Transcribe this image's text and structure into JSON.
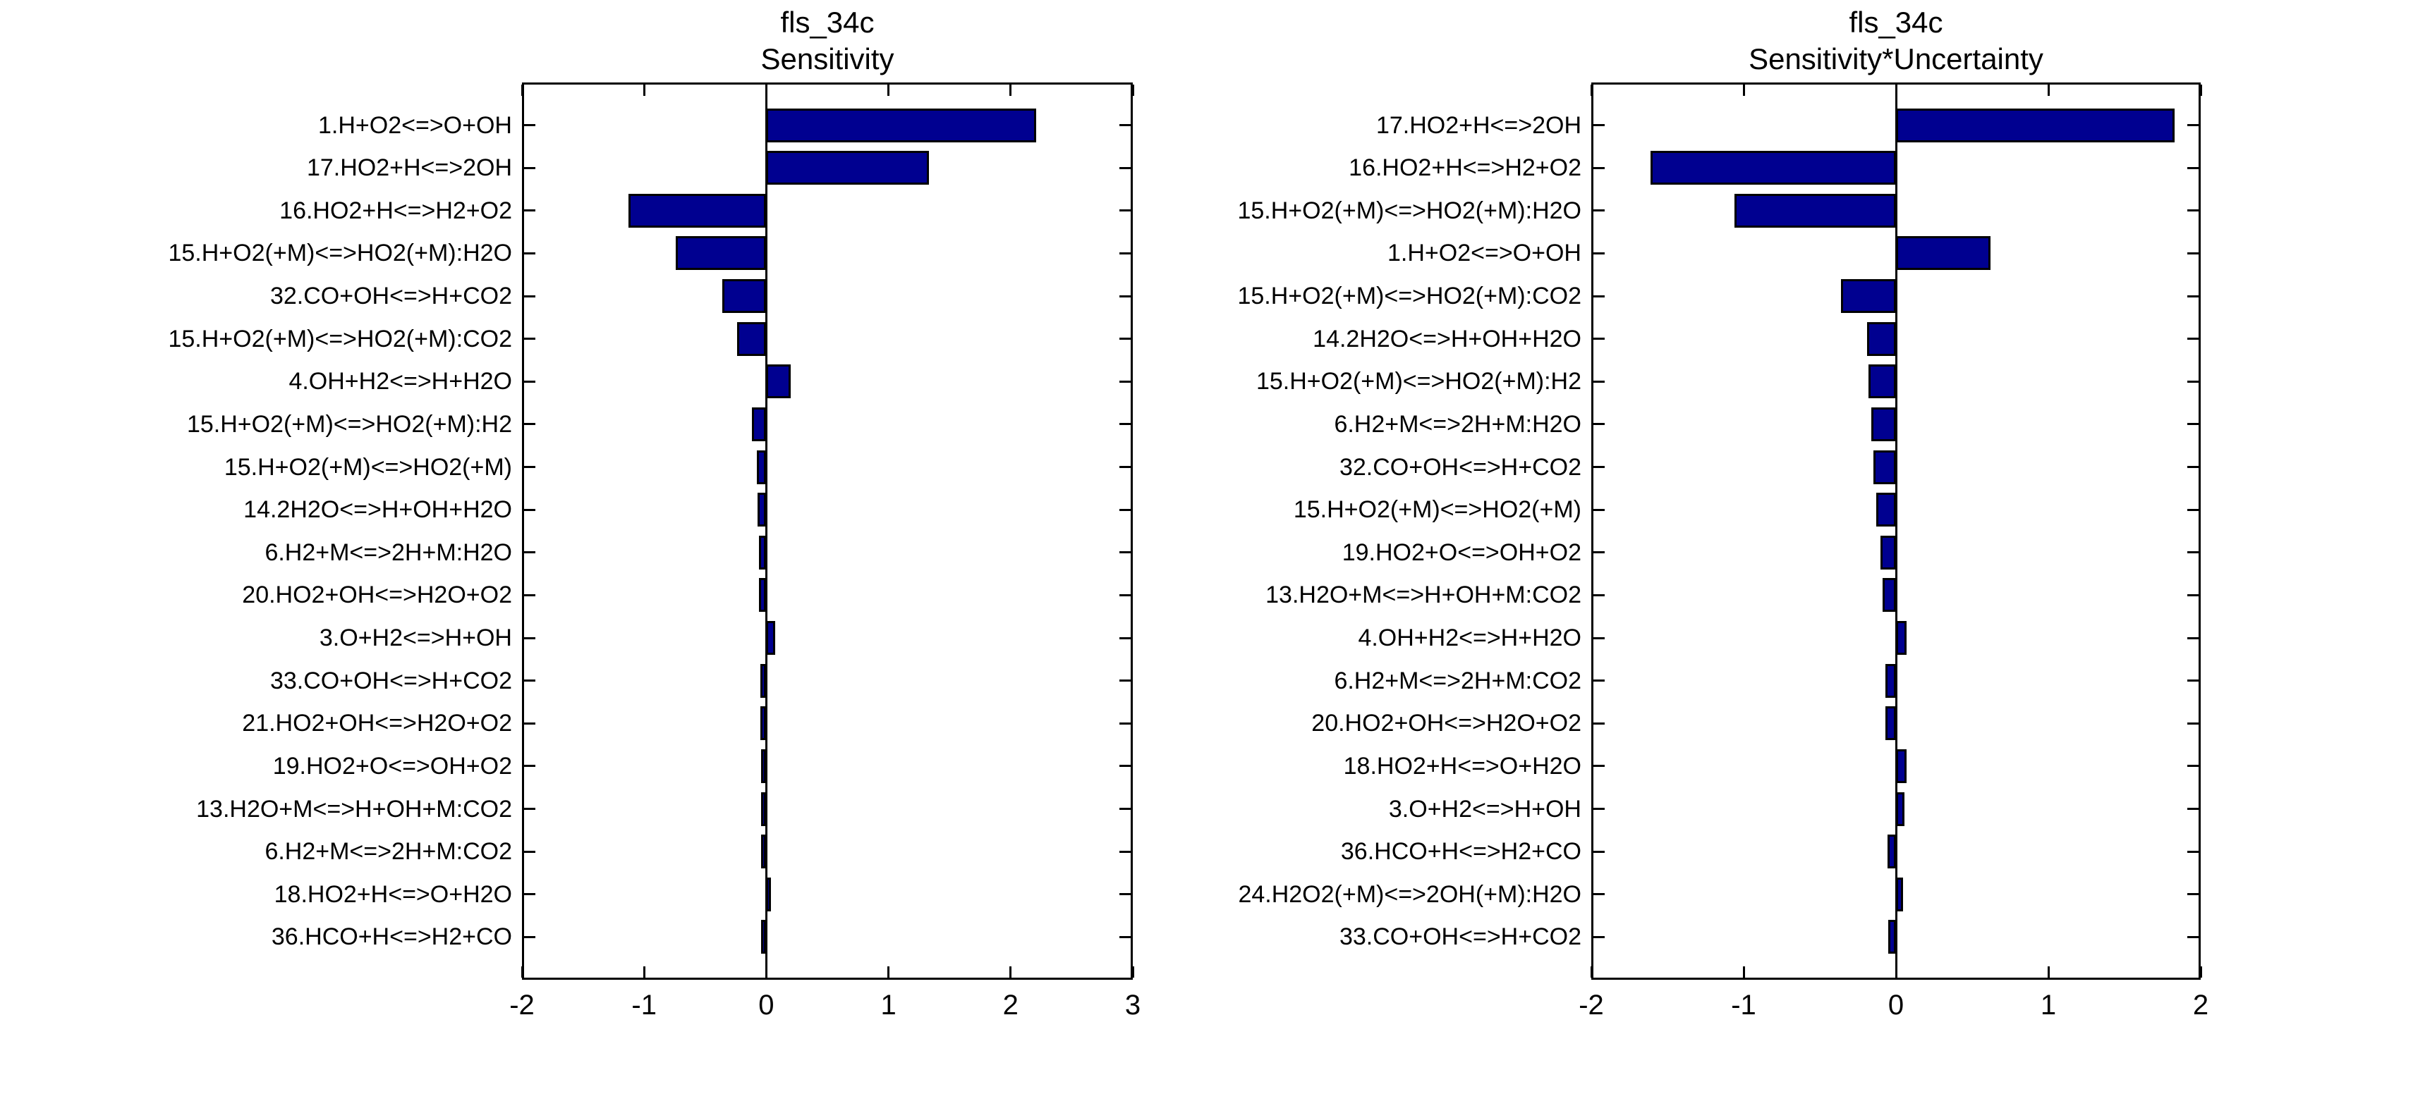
{
  "figure": {
    "background": "#ffffff",
    "axis_color": "#000000",
    "bar_color": "#000090",
    "bar_edge_color": "#000000"
  },
  "chart_data": [
    {
      "type": "bar",
      "orientation": "horizontal",
      "title_line1": "fls_34c",
      "title_line2": "Sensitivity",
      "xlabel": "",
      "ylabel": "",
      "xlim": [
        -2,
        3
      ],
      "xticks": [
        "-2",
        "-1",
        "0",
        "1",
        "2",
        "3"
      ],
      "xtick_values": [
        -2,
        -1,
        0,
        1,
        2,
        3
      ],
      "grid": false,
      "categories": [
        "1.H+O2<=>O+OH",
        "17.HO2+H<=>2OH",
        "16.HO2+H<=>H2+O2",
        "15.H+O2(+M)<=>HO2(+M):H2O",
        "32.CO+OH<=>H+CO2",
        "15.H+O2(+M)<=>HO2(+M):CO2",
        "4.OH+H2<=>H+H2O",
        "15.H+O2(+M)<=>HO2(+M):H2",
        "15.H+O2(+M)<=>HO2(+M)",
        "14.2H2O<=>H+OH+H2O",
        "6.H2+M<=>2H+M:H2O",
        "20.HO2+OH<=>H2O+O2",
        "3.O+H2<=>H+OH",
        "33.CO+OH<=>H+CO2",
        "21.HO2+OH<=>H2O+O2",
        "19.HO2+O<=>OH+O2",
        "13.H2O+M<=>H+OH+M:CO2",
        "6.H2+M<=>2H+M:CO2",
        "18.HO2+H<=>O+H2O",
        "36.HCO+H<=>H2+CO"
      ],
      "values": [
        2.21,
        1.33,
        -1.13,
        -0.74,
        -0.36,
        -0.24,
        0.2,
        -0.12,
        -0.08,
        -0.07,
        -0.06,
        -0.06,
        0.07,
        -0.05,
        -0.05,
        -0.035,
        -0.035,
        -0.03,
        0.03,
        -0.03
      ]
    },
    {
      "type": "bar",
      "orientation": "horizontal",
      "title_line1": "fls_34c",
      "title_line2": "Sensitivity*Uncertainty",
      "xlabel": "",
      "ylabel": "",
      "xlim": [
        -2,
        2
      ],
      "xticks": [
        "-2",
        "-1",
        "0",
        "1",
        "2"
      ],
      "xtick_values": [
        -2,
        -1,
        0,
        1,
        2
      ],
      "grid": false,
      "categories": [
        "17.HO2+H<=>2OH",
        "16.HO2+H<=>H2+O2",
        "15.H+O2(+M)<=>HO2(+M):H2O",
        "1.H+O2<=>O+OH",
        "15.H+O2(+M)<=>HO2(+M):CO2",
        "14.2H2O<=>H+OH+H2O",
        "15.H+O2(+M)<=>HO2(+M):H2",
        "6.H2+M<=>2H+M:H2O",
        "32.CO+OH<=>H+CO2",
        "15.H+O2(+M)<=>HO2(+M)",
        "19.HO2+O<=>OH+O2",
        "13.H2O+M<=>H+OH+M:CO2",
        "4.OH+H2<=>H+H2O",
        "6.H2+M<=>2H+M:CO2",
        "20.HO2+OH<=>H2O+O2",
        "18.HO2+H<=>O+H2O",
        "3.O+H2<=>H+OH",
        "36.HCO+H<=>H2+CO",
        "24.H2O2(+M)<=>2OH(+M):H2O",
        "33.CO+OH<=>H+CO2"
      ],
      "values": [
        1.83,
        -1.61,
        -1.06,
        0.62,
        -0.36,
        -0.19,
        -0.18,
        -0.16,
        -0.15,
        -0.13,
        -0.1,
        -0.09,
        0.07,
        -0.07,
        -0.07,
        0.07,
        0.055,
        -0.055,
        0.045,
        -0.05
      ]
    }
  ]
}
